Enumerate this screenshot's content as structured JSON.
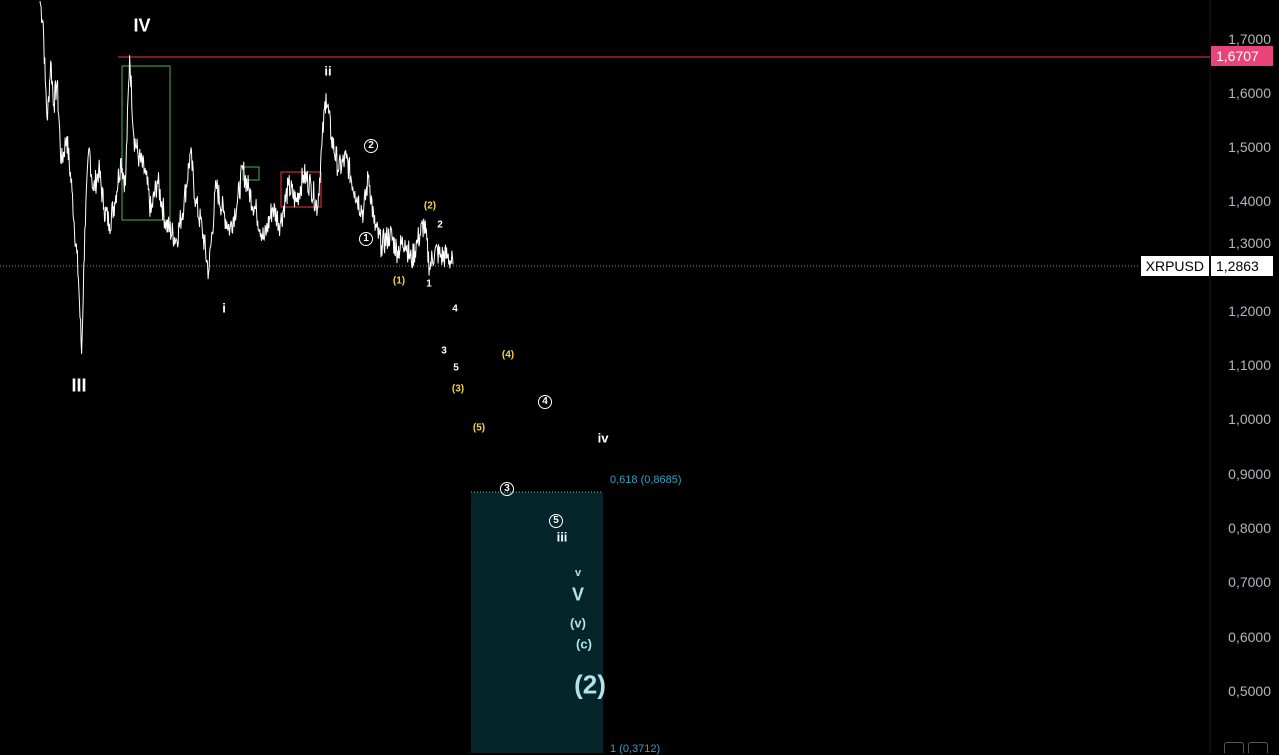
{
  "chart_data": {
    "type": "line",
    "symbol": "XRPUSD",
    "last_price": "1,2863",
    "resistance_price": "1,6707",
    "ylim": [
      0.4,
      1.78
    ],
    "y_ticks": [
      "1,7000",
      "1,6000",
      "1,5000",
      "1,4000",
      "1,3000",
      "1,2000",
      "1,1000",
      "1,0000",
      "0,9000",
      "0,8000",
      "0,7000",
      "0,6000",
      "0,5000"
    ],
    "price_pivots": [
      [
        0,
        1.77
      ],
      [
        3,
        1.73
      ],
      [
        5,
        1.62
      ],
      [
        7,
        1.55
      ],
      [
        10,
        1.66
      ],
      [
        13,
        1.58
      ],
      [
        16,
        1.62
      ],
      [
        20,
        1.47
      ],
      [
        25,
        1.52
      ],
      [
        30,
        1.42
      ],
      [
        36,
        1.26
      ],
      [
        39,
        1.12
      ],
      [
        42,
        1.35
      ],
      [
        46,
        1.5
      ],
      [
        50,
        1.42
      ],
      [
        55,
        1.46
      ],
      [
        60,
        1.39
      ],
      [
        65,
        1.36
      ],
      [
        70,
        1.4
      ],
      [
        76,
        1.48
      ],
      [
        80,
        1.43
      ],
      [
        84,
        1.67
      ],
      [
        88,
        1.52
      ],
      [
        93,
        1.48
      ],
      [
        99,
        1.45
      ],
      [
        104,
        1.38
      ],
      [
        110,
        1.44
      ],
      [
        118,
        1.36
      ],
      [
        128,
        1.33
      ],
      [
        135,
        1.4
      ],
      [
        141,
        1.49
      ],
      [
        146,
        1.4
      ],
      [
        152,
        1.35
      ],
      [
        158,
        1.27
      ],
      [
        165,
        1.43
      ],
      [
        172,
        1.38
      ],
      [
        178,
        1.35
      ],
      [
        185,
        1.4
      ],
      [
        190,
        1.46
      ],
      [
        196,
        1.42
      ],
      [
        203,
        1.38
      ],
      [
        210,
        1.33
      ],
      [
        218,
        1.39
      ],
      [
        225,
        1.36
      ],
      [
        233,
        1.43
      ],
      [
        240,
        1.4
      ],
      [
        247,
        1.45
      ],
      [
        254,
        1.43
      ],
      [
        260,
        1.39
      ],
      [
        264,
        1.5
      ],
      [
        268,
        1.6
      ],
      [
        273,
        1.52
      ],
      [
        280,
        1.46
      ],
      [
        287,
        1.48
      ],
      [
        295,
        1.42
      ],
      [
        303,
        1.38
      ],
      [
        308,
        1.45
      ],
      [
        313,
        1.36
      ],
      [
        320,
        1.32
      ],
      [
        328,
        1.34
      ],
      [
        335,
        1.31
      ],
      [
        342,
        1.33
      ],
      [
        348,
        1.29
      ],
      [
        354,
        1.33
      ],
      [
        360,
        1.36
      ],
      [
        365,
        1.28
      ],
      [
        370,
        1.31
      ],
      [
        376,
        1.3
      ],
      [
        382,
        1.3
      ],
      [
        387,
        1.285
      ]
    ],
    "zones": {
      "fib_0618": {
        "label": "0,618 (0,8685)",
        "value": 0.8685
      },
      "fib_1": {
        "label": "1 (0,3712)",
        "value": 0.3712
      }
    },
    "colors": {
      "price": "#ffffff",
      "resistance": "#f23645",
      "fib_zone": "#04262b",
      "fib_text": "#2aa5c6",
      "green_box": "#4caf50",
      "red_box": "#f23645"
    }
  },
  "wave_labels": {
    "III": "III",
    "IV": "IV",
    "i": "i",
    "ii": "ii",
    "iii": "iii",
    "iv": "iv",
    "v": "v",
    "V": "V",
    "c1": "1",
    "c2": "2",
    "c3": "3",
    "c4": "4",
    "c5": "5",
    "y1": "(1)",
    "y2": "(2)",
    "y3": "(3)",
    "y4": "(4)",
    "y5": "(5)",
    "s1": "1",
    "s2": "2",
    "s3": "3",
    "s4": "4",
    "s5": "5",
    "pv": "(v)",
    "pc": "(c)",
    "p2": "(2)"
  }
}
